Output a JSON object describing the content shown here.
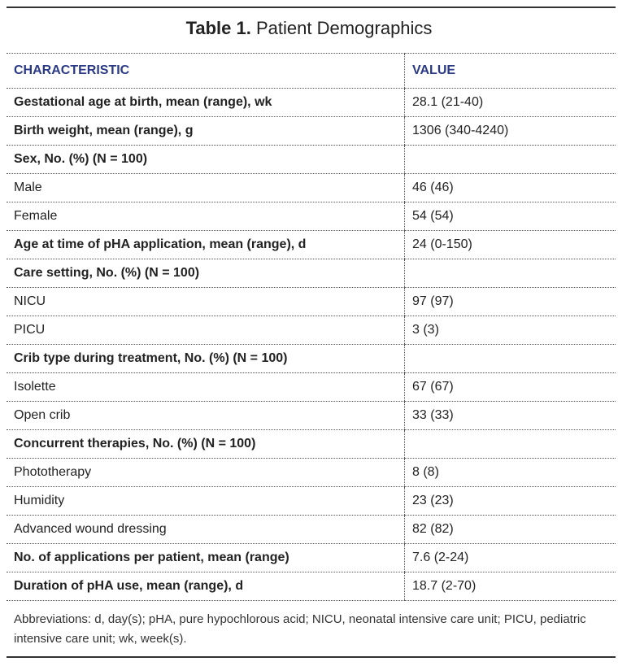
{
  "title": {
    "label": "Table 1.",
    "text": "Patient Demographics"
  },
  "columns": [
    "CHARACTERISTIC",
    "VALUE"
  ],
  "rows": [
    {
      "characteristic": "Gestational age at birth, mean (range), wk",
      "value": "28.1 (21-40)",
      "bold": true
    },
    {
      "characteristic": "Birth weight, mean (range), g",
      "value": "1306 (340-4240)",
      "bold": true
    },
    {
      "characteristic": "Sex, No. (%) (N = 100)",
      "value": "",
      "bold": true
    },
    {
      "characteristic": "Male",
      "value": "46 (46)",
      "bold": false
    },
    {
      "characteristic": "Female",
      "value": "54 (54)",
      "bold": false
    },
    {
      "characteristic": "Age at time of pHA application, mean (range), d",
      "value": "24 (0-150)",
      "bold": true
    },
    {
      "characteristic": "Care setting, No. (%) (N = 100)",
      "value": "",
      "bold": true
    },
    {
      "characteristic": "NICU",
      "value": "97 (97)",
      "bold": false
    },
    {
      "characteristic": "PICU",
      "value": "3 (3)",
      "bold": false
    },
    {
      "characteristic": "Crib type during treatment, No. (%) (N = 100)",
      "value": "",
      "bold": true
    },
    {
      "characteristic": "Isolette",
      "value": "67 (67)",
      "bold": false
    },
    {
      "characteristic": "Open crib",
      "value": "33 (33)",
      "bold": false
    },
    {
      "characteristic": "Concurrent therapies, No. (%) (N = 100)",
      "value": "",
      "bold": true
    },
    {
      "characteristic": "Phototherapy",
      "value": "8 (8)",
      "bold": false
    },
    {
      "characteristic": "Humidity",
      "value": "23 (23)",
      "bold": false
    },
    {
      "characteristic": "Advanced wound dressing",
      "value": "82 (82)",
      "bold": false
    },
    {
      "characteristic": "No. of applications per patient, mean (range)",
      "value": "7.6 (2-24)",
      "bold": true
    },
    {
      "characteristic": "Duration of pHA use, mean (range), d",
      "value": "18.7 (2-70)",
      "bold": true
    }
  ],
  "footnote": "Abbreviations: d, day(s); pHA, pure hypochlorous acid; NICU, neonatal intensive care unit; PICU, pediatric intensive care unit; wk, week(s).",
  "colors": {
    "header": "#2b3a86",
    "text": "#222222",
    "rule": "#333333"
  }
}
